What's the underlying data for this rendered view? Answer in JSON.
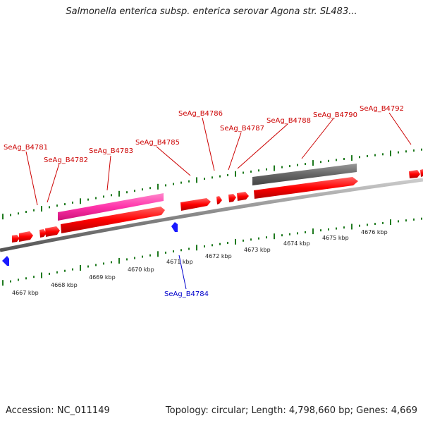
{
  "title": "Salmonella enterica subsp. enterica serovar Agona str. SL483...",
  "footer": {
    "accession": "Accession: NC_011149",
    "summary": "Topology: circular; Length: 4,798,660 bp; Genes: 4,669"
  },
  "colors": {
    "gene_label_red": "#cc0000",
    "gene_label_blue": "#0000cc",
    "cds_forward": "#ff0000",
    "highlight_pink": "#ff33aa",
    "highlight_gray": "#666666",
    "ticks": "#1f7a1f",
    "backbone": "#888888"
  },
  "scale_labels": [
    "4667 kbp",
    "4668 kbp",
    "4669 kbp",
    "4670 kbp",
    "4671 kbp",
    "4672 kbp",
    "4673 kbp",
    "4674 kbp",
    "4675 kbp",
    "4676 kbp"
  ],
  "gene_labels": [
    {
      "id": "SeAg_B4781",
      "strand": "forward"
    },
    {
      "id": "SeAg_B4782",
      "strand": "forward"
    },
    {
      "id": "SeAg_B4783",
      "strand": "forward"
    },
    {
      "id": "SeAg_B4785",
      "strand": "forward"
    },
    {
      "id": "SeAg_B4786",
      "strand": "forward"
    },
    {
      "id": "SeAg_B4787",
      "strand": "forward"
    },
    {
      "id": "SeAg_B4788",
      "strand": "forward"
    },
    {
      "id": "SeAg_B4790",
      "strand": "forward"
    },
    {
      "id": "SeAg_B4792",
      "strand": "forward"
    },
    {
      "id": "SeAg_B4784",
      "strand": "reverse"
    }
  ]
}
